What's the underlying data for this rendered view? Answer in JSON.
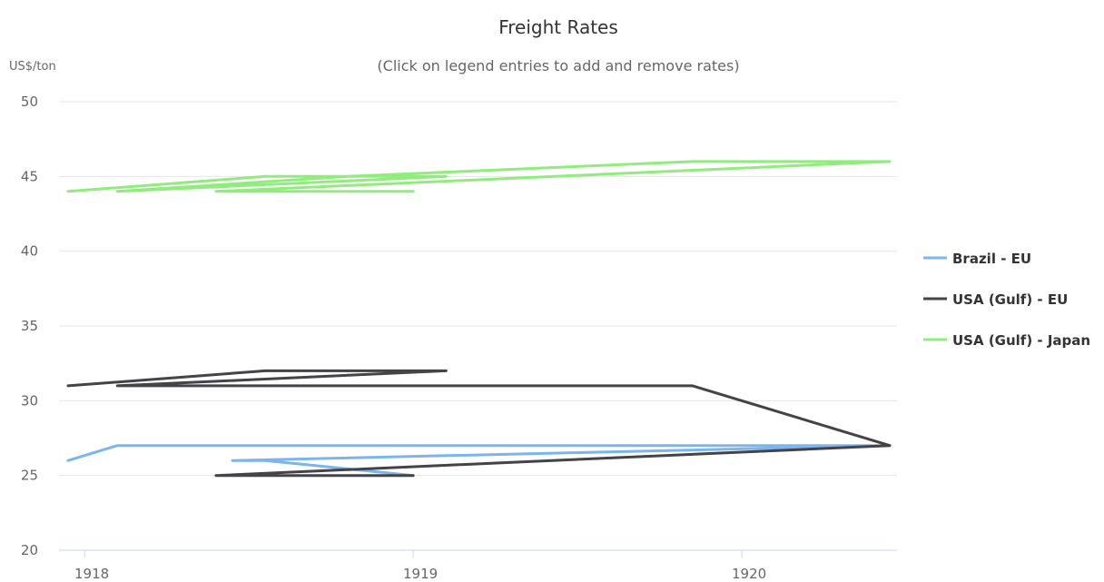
{
  "chart_data": {
    "type": "line",
    "title": "Freight Rates",
    "subtitle": "(Click on legend entries to add and remove rates)",
    "ylabel": "US$/ton",
    "xlabel": "",
    "ylim": [
      20,
      50
    ],
    "xlim": [
      1917.95,
      1920.45
    ],
    "yticks": [
      20,
      25,
      30,
      35,
      40,
      45,
      50
    ],
    "xticks": [
      1918,
      1919,
      1920
    ],
    "grid": true,
    "legend": "right",
    "series": [
      {
        "name": "Brazil - EU",
        "color": "#7cb5ec",
        "points": [
          {
            "x": 1917.95,
            "y": 26
          },
          {
            "x": 1918.1,
            "y": 27
          },
          {
            "x": 1918.45,
            "y": 27
          },
          {
            "x": 1918.75,
            "y": 27
          },
          {
            "x": 1919.1,
            "y": 27
          },
          {
            "x": 1919.8,
            "y": 27
          },
          {
            "x": 1920.45,
            "y": 27
          },
          {
            "x": 1918.45,
            "y": 26
          },
          {
            "x": 1918.55,
            "y": 26
          },
          {
            "x": 1919.0,
            "y": 25
          }
        ]
      },
      {
        "name": "USA (Gulf) - EU",
        "color": "#434348",
        "points": [
          {
            "x": 1917.95,
            "y": 31
          },
          {
            "x": 1918.55,
            "y": 32
          },
          {
            "x": 1919.1,
            "y": 32
          },
          {
            "x": 1918.1,
            "y": 31
          },
          {
            "x": 1919.85,
            "y": 31
          },
          {
            "x": 1920.45,
            "y": 27
          },
          {
            "x": 1918.4,
            "y": 25
          },
          {
            "x": 1919.0,
            "y": 25
          }
        ]
      },
      {
        "name": "USA (Gulf) - Japan",
        "color": "#90ed7d",
        "points": [
          {
            "x": 1917.95,
            "y": 44
          },
          {
            "x": 1918.55,
            "y": 45
          },
          {
            "x": 1919.1,
            "y": 45
          },
          {
            "x": 1918.1,
            "y": 44
          },
          {
            "x": 1918.8,
            "y": 45
          },
          {
            "x": 1919.85,
            "y": 46
          },
          {
            "x": 1920.45,
            "y": 46
          },
          {
            "x": 1918.4,
            "y": 44
          },
          {
            "x": 1919.0,
            "y": 44
          }
        ]
      }
    ]
  }
}
